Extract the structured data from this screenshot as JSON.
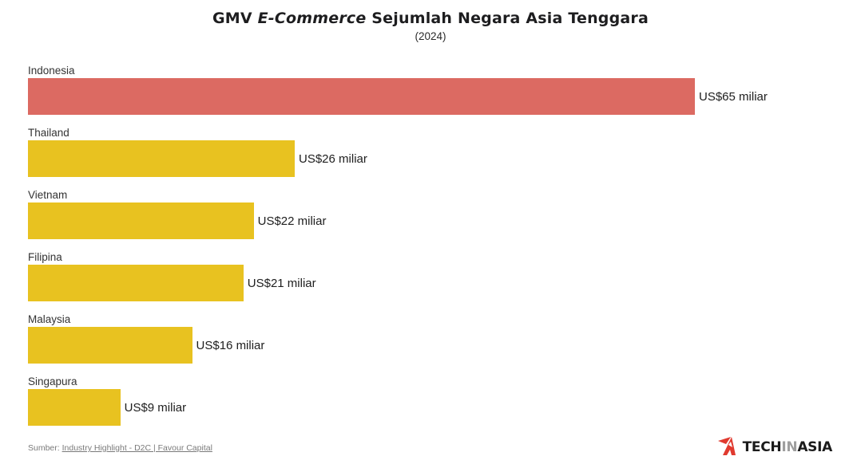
{
  "title": {
    "prefix": "GMV ",
    "italic": "E-Commerce",
    "suffix": " Sejumlah Negara Asia Tenggara"
  },
  "subtitle": "(2024)",
  "chart_data": {
    "type": "bar",
    "orientation": "horizontal",
    "title": "GMV E-Commerce Sejumlah Negara Asia Tenggara",
    "subtitle": "(2024)",
    "categories": [
      "Indonesia",
      "Thailand",
      "Vietnam",
      "Filipina",
      "Malaysia",
      "Singapura"
    ],
    "values": [
      65,
      26,
      22,
      21,
      16,
      9
    ],
    "value_labels": [
      "US$65 miliar",
      "US$26 miliar",
      "US$22 miliar",
      "US$21 miliar",
      "US$16 miliar",
      "US$9 miliar"
    ],
    "bar_colors": [
      "#DC6A62",
      "#E8C220",
      "#E8C220",
      "#E8C220",
      "#E8C220",
      "#E8C220"
    ],
    "highlight_color": "#DC6A62",
    "default_color": "#E8C220",
    "xlim": [
      0,
      65
    ],
    "unit": "US$ miliar",
    "grid": false,
    "legend": false
  },
  "footer": {
    "source_prefix": "Sumber: ",
    "source_link": "Industry Highlight - D2C | Favour Capital"
  },
  "logo": {
    "tech": "TECH",
    "in": "IN",
    "asia": "ASIA",
    "accent_color": "#E03A2F"
  }
}
